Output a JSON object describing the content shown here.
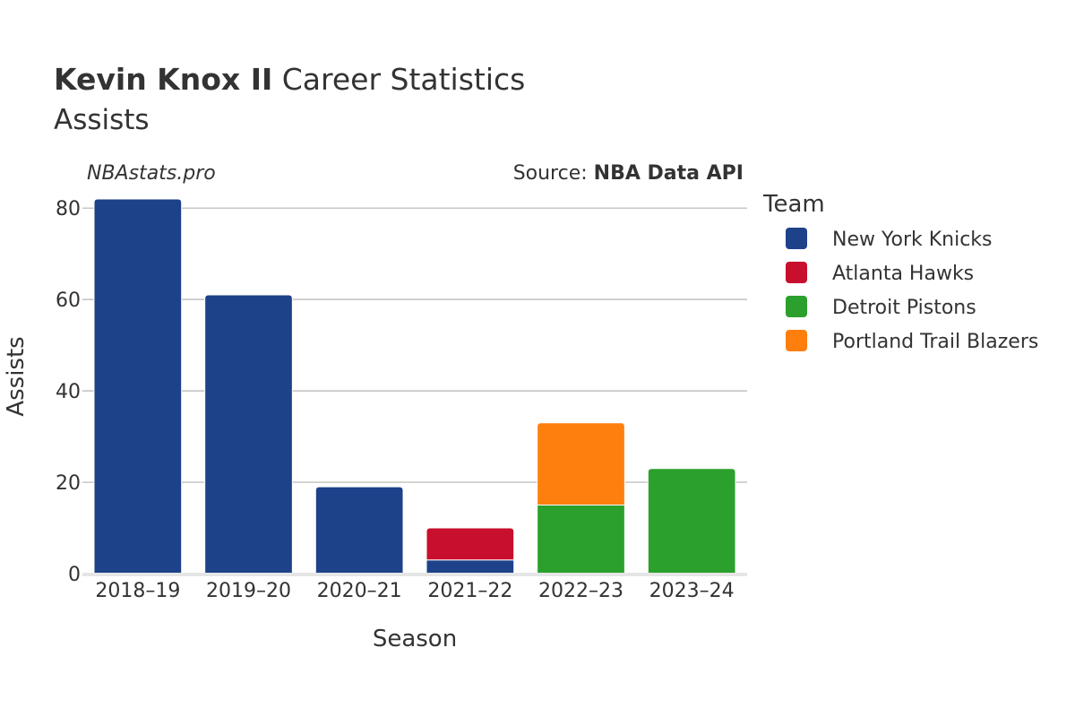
{
  "header": {
    "title_bold": "Kevin Knox II",
    "title_rest": " Career Statistics",
    "subtitle": "Assists",
    "watermark": "NBAstats.pro",
    "source_prefix": "Source: ",
    "source_name": "NBA Data API"
  },
  "chart_data": {
    "type": "bar",
    "stacked": true,
    "categories": [
      "2018–19",
      "2019–20",
      "2020–21",
      "2021–22",
      "2022–23",
      "2023–24"
    ],
    "series": [
      {
        "name": "New York Knicks",
        "color": "#1d428a",
        "values": [
          82,
          61,
          19,
          3,
          0,
          0
        ]
      },
      {
        "name": "Atlanta Hawks",
        "color": "#c8102e",
        "values": [
          0,
          0,
          0,
          7,
          0,
          0
        ]
      },
      {
        "name": "Detroit Pistons",
        "color": "#2ca02c",
        "values": [
          0,
          0,
          0,
          0,
          15,
          23
        ]
      },
      {
        "name": "Portland Trail Blazers",
        "color": "#ff7f0e",
        "values": [
          0,
          0,
          0,
          0,
          18,
          0
        ]
      }
    ],
    "xlabel": "Season",
    "ylabel": "Assists",
    "ylim": [
      0,
      82
    ],
    "yticks": [
      0,
      20,
      40,
      60,
      80
    ],
    "legend_title": "Team",
    "legend_position": "right",
    "grid": true
  }
}
